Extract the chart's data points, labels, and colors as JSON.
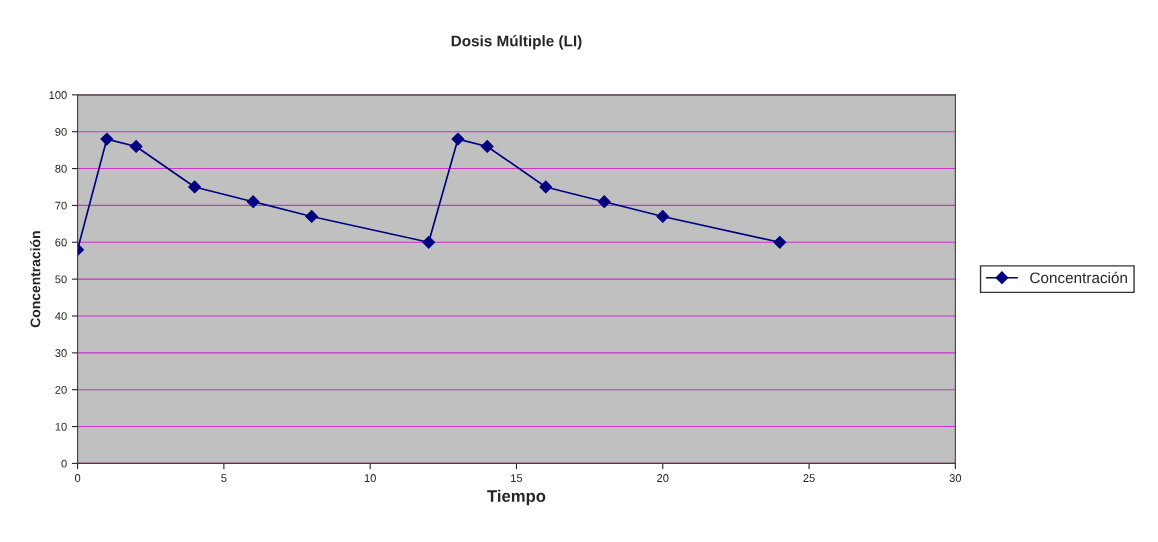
{
  "chart_data": {
    "type": "line",
    "title": "Dosis Múltiple (LI)",
    "xlabel": "Tiempo",
    "ylabel": "Concentración",
    "x": [
      0,
      1,
      2,
      4,
      6,
      8,
      12,
      13,
      14,
      16,
      18,
      20,
      24
    ],
    "series": [
      {
        "name": "Concentración",
        "color": "#000080",
        "values": [
          58,
          88,
          86,
          75,
          71,
          67,
          60,
          88,
          86,
          75,
          71,
          67,
          60
        ]
      }
    ],
    "xlim": [
      0,
      30
    ],
    "xticks": [
      0,
      5,
      10,
      15,
      20,
      25,
      30
    ],
    "ylim": [
      0,
      100
    ],
    "yticks": [
      0,
      10,
      20,
      30,
      40,
      50,
      60,
      70,
      80,
      90,
      100
    ],
    "grid": "y",
    "legend": "right",
    "marker": "diamond",
    "line_style": "solid"
  }
}
